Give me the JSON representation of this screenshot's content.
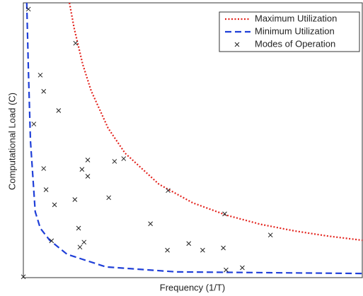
{
  "chart_data": {
    "type": "scatter",
    "x_label": "Frequency (1/T)",
    "y_label": "Computational Load (C)",
    "xlim": [
      0,
      100
    ],
    "ylim": [
      0,
      100
    ],
    "legend": "upper right",
    "series": [
      {
        "name": "Maximum Utilization",
        "color": "#e3241e",
        "style": "dotted",
        "x": [
          13.6,
          15,
          17.5,
          20,
          25,
          30,
          40,
          50,
          60,
          70,
          80,
          90,
          100
        ],
        "values": [
          100,
          90.7,
          77.7,
          68,
          54.4,
          45.3,
          34,
          27.2,
          22.7,
          19.4,
          17,
          15.1,
          13.6
        ]
      },
      {
        "name": "Minimum Utilization",
        "color": "#1f3fd8",
        "style": "dashed",
        "x": [
          1,
          1.5,
          2.1,
          3.5,
          5,
          7.7,
          12.9,
          24.4,
          45,
          100
        ],
        "values": [
          100,
          75,
          49.7,
          24,
          18,
          13.7,
          8.5,
          3.9,
          2.1,
          1.5
        ]
      },
      {
        "name": "Modes of Operation",
        "color": "#222222",
        "style": "markers",
        "x": [
          1.5,
          15.4,
          5,
          6,
          10.4,
          3.1,
          26.9,
          29.6,
          19,
          17.3,
          19,
          6,
          6.7,
          9.2,
          15.2,
          25.2,
          42.7,
          59.4,
          37.5,
          16.3,
          8.3,
          17.9,
          16.7,
          48.8,
          42.5,
          52.9,
          59,
          72.9,
          64.6,
          59.8,
          0
        ],
        "values": [
          97.7,
          85.3,
          73.7,
          67.8,
          60.8,
          55.9,
          42.3,
          43.3,
          42.8,
          39.4,
          36.9,
          39.7,
          32,
          26.5,
          28.4,
          29.1,
          31.7,
          23.2,
          19.6,
          18,
          13.4,
          12.9,
          11.1,
          12.4,
          10,
          10,
          10.8,
          15.5,
          3.6,
          2.8,
          0.3
        ]
      }
    ]
  }
}
